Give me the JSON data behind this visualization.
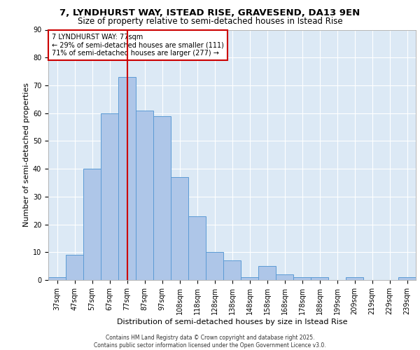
{
  "title1": "7, LYNDHURST WAY, ISTEAD RISE, GRAVESEND, DA13 9EN",
  "title2": "Size of property relative to semi-detached houses in Istead Rise",
  "xlabel": "Distribution of semi-detached houses by size in Istead Rise",
  "ylabel": "Number of semi-detached properties",
  "categories": [
    "37sqm",
    "47sqm",
    "57sqm",
    "67sqm",
    "77sqm",
    "87sqm",
    "97sqm",
    "108sqm",
    "118sqm",
    "128sqm",
    "138sqm",
    "148sqm",
    "158sqm",
    "168sqm",
    "178sqm",
    "188sqm",
    "199sqm",
    "209sqm",
    "219sqm",
    "229sqm",
    "239sqm"
  ],
  "values": [
    1,
    9,
    40,
    60,
    73,
    61,
    59,
    37,
    23,
    10,
    7,
    1,
    5,
    2,
    1,
    1,
    0,
    1,
    0,
    0,
    1
  ],
  "bar_color": "#aec6e8",
  "bar_edge_color": "#5b9bd5",
  "vline_x": 4,
  "vline_color": "#cc0000",
  "annotation_text": "7 LYNDHURST WAY: 77sqm\n← 29% of semi-detached houses are smaller (111)\n71% of semi-detached houses are larger (277) →",
  "annotation_box_color": "#ffffff",
  "annotation_box_edge": "#cc0000",
  "ylim": [
    0,
    90
  ],
  "yticks": [
    0,
    10,
    20,
    30,
    40,
    50,
    60,
    70,
    80,
    90
  ],
  "bg_color": "#dce9f5",
  "grid_color": "#ffffff",
  "footer": "Contains HM Land Registry data © Crown copyright and database right 2025.\nContains public sector information licensed under the Open Government Licence v3.0.",
  "title1_fontsize": 9.5,
  "title2_fontsize": 8.5,
  "annot_fontsize": 7,
  "tick_fontsize": 7,
  "ylabel_fontsize": 8,
  "xlabel_fontsize": 8,
  "footer_fontsize": 5.5
}
